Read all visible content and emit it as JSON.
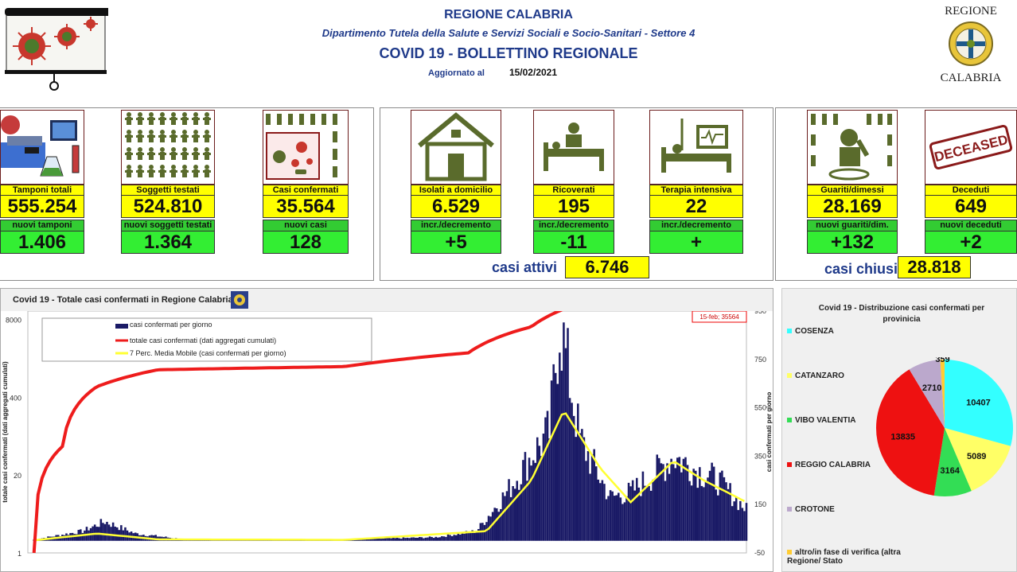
{
  "header": {
    "region": "REGIONE CALABRIA",
    "department": "Dipartimento Tutela della Salute e Servizi Sociali e Socio-Sanitari - Settore 4",
    "title": "COVID 19 - BOLLETTINO REGIONALE",
    "updated_label": "Aggiornato al",
    "updated_date": "15/02/2021",
    "logo_top": "REGIONE",
    "logo_bottom": "CALABRIA"
  },
  "stats": {
    "tamponi": {
      "label": "Tamponi totali",
      "value": "555.254",
      "new_label": "nuovi tamponi",
      "new_value": "1.406"
    },
    "soggetti": {
      "label": "Soggetti testati",
      "value": "524.810",
      "new_label": "nuovi soggetti testati",
      "new_value": "1.364"
    },
    "casi": {
      "label": "Casi confermati",
      "value": "35.564",
      "new_label": "nuovi casi",
      "new_value": "128"
    },
    "isolati": {
      "label": "Isolati a domicilio",
      "value": "6.529",
      "new_label": "incr./decremento",
      "new_value": "+5"
    },
    "ricoverati": {
      "label": "Ricoverati",
      "value": "195",
      "new_label": "incr./decremento",
      "new_value": "-11"
    },
    "terapia": {
      "label": "Terapia intensiva",
      "value": "22",
      "new_label": "incr./decremento",
      "new_value": "+"
    },
    "guariti": {
      "label": "Guariti/dimessi",
      "value": "28.169",
      "new_label": "nuovi guariti/dim.",
      "new_value": "+132"
    },
    "deceduti": {
      "label": "Deceduti",
      "value": "649",
      "new_label": "nuovi deceduti",
      "new_value": "+2"
    },
    "casi_attivi_label": "casi attivi",
    "casi_attivi_value": "6.746",
    "casi_chiusi_label": "casi chiusi",
    "casi_chiusi_value": "28.818",
    "deceased_stamp": "DECEASED"
  },
  "colors": {
    "bars": "#1a1a66",
    "cumulative": "#ee1c1c",
    "moving_avg": "#ffff33",
    "title_blue": "#1f3a8a"
  },
  "chart_data": [
    {
      "type": "bar",
      "title": "Covid 19 - Totale casi confermati in Regione Calabria",
      "annotation": "15-feb; 35564",
      "ylabel_left": "totale casi confermati (dati aggregati cumulati)",
      "ylabel_right": "casi confermati per giorno",
      "left_axis_ticks": [
        "8000",
        "400",
        "20",
        "1"
      ],
      "left_axis_scale": "log",
      "right_axis_ticks": [
        "950",
        "750",
        "550",
        "350",
        "150",
        "-50"
      ],
      "right_axis_range": [
        -50,
        950
      ],
      "legend": [
        "casi confermati per giorno",
        "totale casi confermati (dati aggregati cumulati)",
        "7 Perc. Media Mobile (casi confermati per giorno)"
      ],
      "x_range": [
        "2020-02-27",
        "2021-02-15"
      ],
      "daily_bars_keypoints": [
        {
          "date": "2020-03-01",
          "value": 5
        },
        {
          "date": "2020-03-25",
          "value": 40
        },
        {
          "date": "2020-04-05",
          "value": 80
        },
        {
          "date": "2020-04-20",
          "value": 30
        },
        {
          "date": "2020-05-15",
          "value": 5
        },
        {
          "date": "2020-08-01",
          "value": 5
        },
        {
          "date": "2020-09-15",
          "value": 15
        },
        {
          "date": "2020-10-05",
          "value": 40
        },
        {
          "date": "2020-10-20",
          "value": 200
        },
        {
          "date": "2020-11-01",
          "value": 350
        },
        {
          "date": "2020-11-10",
          "value": 450
        },
        {
          "date": "2020-11-15",
          "value": 910
        },
        {
          "date": "2020-11-25",
          "value": 420
        },
        {
          "date": "2020-12-10",
          "value": 180
        },
        {
          "date": "2020-12-20",
          "value": 200
        },
        {
          "date": "2021-01-01",
          "value": 280
        },
        {
          "date": "2021-01-10",
          "value": 350
        },
        {
          "date": "2021-01-20",
          "value": 300
        },
        {
          "date": "2021-02-01",
          "value": 250
        },
        {
          "date": "2021-02-15",
          "value": 128
        }
      ],
      "cumulative_keypoints": [
        {
          "date": "2020-03-01",
          "value": 1
        },
        {
          "date": "2020-03-15",
          "value": 60
        },
        {
          "date": "2020-04-01",
          "value": 600
        },
        {
          "date": "2020-05-01",
          "value": 1150
        },
        {
          "date": "2020-06-01",
          "value": 1200
        },
        {
          "date": "2020-08-01",
          "value": 1300
        },
        {
          "date": "2020-10-01",
          "value": 2200
        },
        {
          "date": "2020-11-01",
          "value": 6000
        },
        {
          "date": "2020-12-01",
          "value": 17000
        },
        {
          "date": "2021-01-01",
          "value": 24000
        },
        {
          "date": "2021-02-15",
          "value": 35564
        }
      ],
      "moving_avg_keypoints": [
        {
          "date": "2020-03-01",
          "value": 2
        },
        {
          "date": "2020-04-01",
          "value": 30
        },
        {
          "date": "2020-05-01",
          "value": 6
        },
        {
          "date": "2020-08-01",
          "value": 4
        },
        {
          "date": "2020-10-10",
          "value": 40
        },
        {
          "date": "2020-11-01",
          "value": 250
        },
        {
          "date": "2020-11-17",
          "value": 540
        },
        {
          "date": "2020-12-05",
          "value": 300
        },
        {
          "date": "2020-12-20",
          "value": 160
        },
        {
          "date": "2021-01-10",
          "value": 330
        },
        {
          "date": "2021-01-25",
          "value": 250
        },
        {
          "date": "2021-02-15",
          "value": 160
        }
      ]
    },
    {
      "type": "pie",
      "title": "Covid 19 - Distribuzione casi confermati per provinicia",
      "categories": [
        "COSENZA",
        "CATANZARO",
        "VIBO VALENTIA",
        "REGGIO CALABRIA",
        "CROTONE",
        "altro/in fase di verifica (altra Regione/ Stato"
      ],
      "values": [
        10407,
        5089,
        3164,
        13835,
        2710,
        359
      ],
      "colors": [
        "#33ffff",
        "#ffff66",
        "#33dd55",
        "#ee1111",
        "#bba8cc",
        "#ffcc33"
      ]
    }
  ]
}
